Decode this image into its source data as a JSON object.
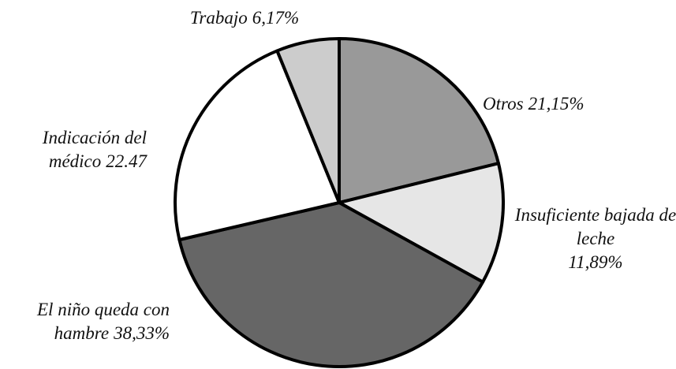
{
  "chart_data": {
    "type": "pie",
    "categories": [
      "Otros",
      "Insuficiente bajada de leche",
      "El niño queda con hambre",
      "Indicación del médico",
      "Trabajo"
    ],
    "values": [
      21.15,
      11.89,
      38.33,
      22.47,
      6.17
    ],
    "value_labels": [
      "21,15%",
      "11,89%",
      "38,33%",
      "22.47",
      "6,17%"
    ],
    "colors": [
      "#999999",
      "#e6e6e6",
      "#666666",
      "#ffffff",
      "#cccccc"
    ]
  }
}
